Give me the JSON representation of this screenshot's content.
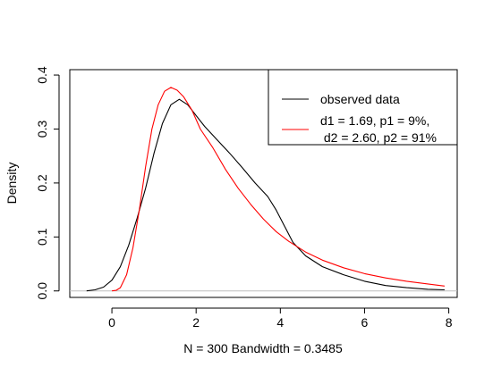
{
  "chart_data": {
    "type": "line",
    "title": "",
    "xlabel": "N = 300   Bandwidth = 0.3485",
    "ylabel": "Density",
    "xlim": [
      -1.0,
      8.2
    ],
    "ylim": [
      -0.012,
      0.41
    ],
    "x_ticks": [
      0,
      2,
      4,
      6,
      8
    ],
    "x_tick_labels": [
      "0",
      "2",
      "4",
      "6",
      "8"
    ],
    "y_ticks": [
      0.0,
      0.1,
      0.2,
      0.3,
      0.4
    ],
    "y_tick_labels": [
      "0.0",
      "0.1",
      "0.2",
      "0.3",
      "0.4"
    ],
    "zero_line": {
      "y": 0,
      "color": "#bebebe"
    },
    "grid": false,
    "legend": {
      "position": "top-right",
      "entries": [
        {
          "label": "observed data",
          "color": "#000000"
        },
        {
          "label": "d1 = 1.69, p1 = 9%,",
          "label2": " d2 = 2.60, p2 = 91%",
          "color": "#ff0000"
        }
      ]
    },
    "series": [
      {
        "name": "observed data",
        "color": "#000000",
        "x": [
          -0.6,
          -0.4,
          -0.2,
          0.0,
          0.2,
          0.4,
          0.6,
          0.8,
          1.0,
          1.2,
          1.4,
          1.6,
          1.8,
          2.0,
          2.2,
          2.5,
          2.8,
          3.1,
          3.4,
          3.7,
          3.9,
          4.1,
          4.3,
          4.6,
          5.0,
          5.5,
          6.0,
          6.5,
          7.0,
          7.5,
          7.9
        ],
        "y": [
          0.0,
          0.002,
          0.007,
          0.02,
          0.045,
          0.085,
          0.135,
          0.19,
          0.255,
          0.31,
          0.345,
          0.355,
          0.345,
          0.325,
          0.305,
          0.28,
          0.255,
          0.228,
          0.2,
          0.175,
          0.15,
          0.12,
          0.09,
          0.065,
          0.045,
          0.03,
          0.018,
          0.01,
          0.006,
          0.003,
          0.002
        ]
      },
      {
        "name": "d1 = 1.69, p1 = 9%, d2 = 2.60, p2 = 91%",
        "color": "#ff0000",
        "x": [
          0.0,
          0.1,
          0.2,
          0.35,
          0.5,
          0.65,
          0.8,
          0.95,
          1.1,
          1.25,
          1.4,
          1.55,
          1.7,
          1.9,
          2.1,
          2.4,
          2.7,
          3.0,
          3.3,
          3.6,
          3.9,
          4.2,
          4.6,
          5.0,
          5.5,
          6.0,
          6.5,
          7.0,
          7.5,
          7.9
        ],
        "y": [
          0.0,
          0.001,
          0.006,
          0.03,
          0.08,
          0.15,
          0.23,
          0.3,
          0.345,
          0.37,
          0.377,
          0.372,
          0.36,
          0.335,
          0.3,
          0.265,
          0.225,
          0.19,
          0.16,
          0.133,
          0.11,
          0.092,
          0.072,
          0.057,
          0.043,
          0.032,
          0.024,
          0.018,
          0.013,
          0.009
        ]
      }
    ]
  }
}
